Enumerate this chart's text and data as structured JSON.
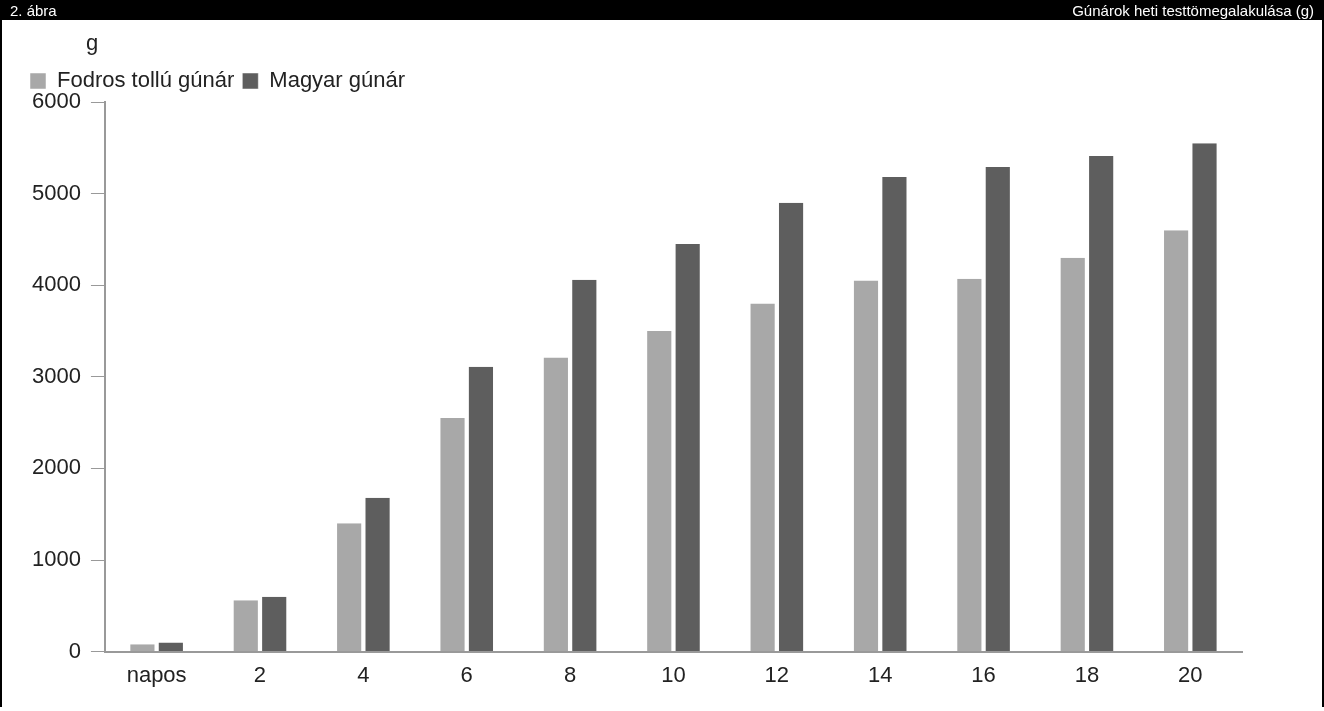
{
  "chart_data": {
    "type": "bar",
    "title": "2. ábra",
    "subtitle": "Gúnárok heti testtömegalakulása (g)",
    "ylabel": "g",
    "categories": [
      "napos",
      "2",
      "4",
      "6",
      "8",
      "10",
      "12",
      "14",
      "16",
      "18",
      "20"
    ],
    "series": [
      {
        "name": "Fodros tollú gúnár",
        "color": "#a8a8a8",
        "values": [
          80,
          560,
          1400,
          2550,
          3210,
          3500,
          3800,
          4050,
          4070,
          4300,
          4600
        ]
      },
      {
        "name": "Magyar gúnár",
        "color": "#5e5e5e",
        "values": [
          100,
          600,
          1680,
          3110,
          4060,
          4450,
          4900,
          5180,
          5290,
          5410,
          5550
        ]
      }
    ],
    "ylim": [
      0,
      6000
    ],
    "yticks": [
      0,
      1000,
      2000,
      3000,
      4000,
      5000,
      6000
    ],
    "grid": false,
    "legend": "top left"
  }
}
